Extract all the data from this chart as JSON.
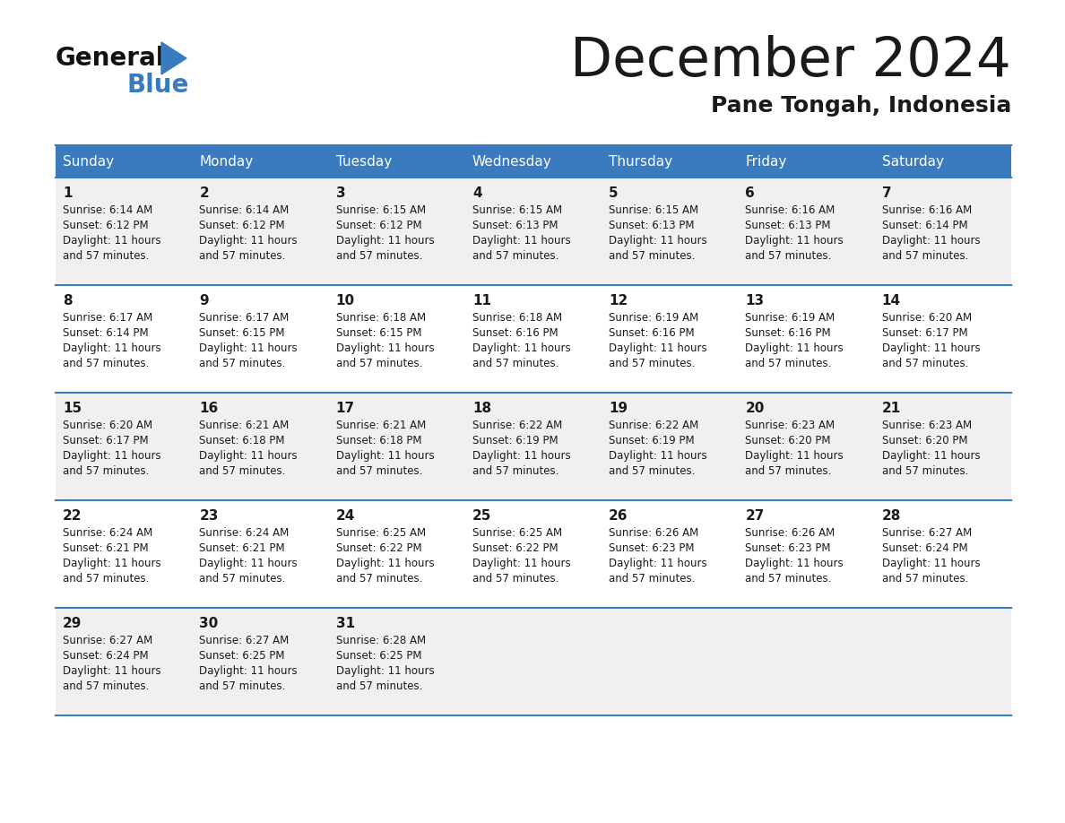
{
  "title": "December 2024",
  "subtitle": "Pane Tongah, Indonesia",
  "header_color": "#3a7bbf",
  "header_text_color": "#ffffff",
  "days_of_week": [
    "Sunday",
    "Monday",
    "Tuesday",
    "Wednesday",
    "Thursday",
    "Friday",
    "Saturday"
  ],
  "bg_color": "#ffffff",
  "cell_bg_even": "#f0f0f0",
  "cell_bg_odd": "#ffffff",
  "border_color": "#3a7bbf",
  "text_color": "#1a1a1a",
  "logo_general_color": "#111111",
  "logo_blue_color": "#3a7bbf",
  "weeks": [
    [
      {
        "day": 1,
        "sunrise": "6:14 AM",
        "sunset": "6:12 PM",
        "daylight": "11 hours and 57 minutes."
      },
      {
        "day": 2,
        "sunrise": "6:14 AM",
        "sunset": "6:12 PM",
        "daylight": "11 hours and 57 minutes."
      },
      {
        "day": 3,
        "sunrise": "6:15 AM",
        "sunset": "6:12 PM",
        "daylight": "11 hours and 57 minutes."
      },
      {
        "day": 4,
        "sunrise": "6:15 AM",
        "sunset": "6:13 PM",
        "daylight": "11 hours and 57 minutes."
      },
      {
        "day": 5,
        "sunrise": "6:15 AM",
        "sunset": "6:13 PM",
        "daylight": "11 hours and 57 minutes."
      },
      {
        "day": 6,
        "sunrise": "6:16 AM",
        "sunset": "6:13 PM",
        "daylight": "11 hours and 57 minutes."
      },
      {
        "day": 7,
        "sunrise": "6:16 AM",
        "sunset": "6:14 PM",
        "daylight": "11 hours and 57 minutes."
      }
    ],
    [
      {
        "day": 8,
        "sunrise": "6:17 AM",
        "sunset": "6:14 PM",
        "daylight": "11 hours and 57 minutes."
      },
      {
        "day": 9,
        "sunrise": "6:17 AM",
        "sunset": "6:15 PM",
        "daylight": "11 hours and 57 minutes."
      },
      {
        "day": 10,
        "sunrise": "6:18 AM",
        "sunset": "6:15 PM",
        "daylight": "11 hours and 57 minutes."
      },
      {
        "day": 11,
        "sunrise": "6:18 AM",
        "sunset": "6:16 PM",
        "daylight": "11 hours and 57 minutes."
      },
      {
        "day": 12,
        "sunrise": "6:19 AM",
        "sunset": "6:16 PM",
        "daylight": "11 hours and 57 minutes."
      },
      {
        "day": 13,
        "sunrise": "6:19 AM",
        "sunset": "6:16 PM",
        "daylight": "11 hours and 57 minutes."
      },
      {
        "day": 14,
        "sunrise": "6:20 AM",
        "sunset": "6:17 PM",
        "daylight": "11 hours and 57 minutes."
      }
    ],
    [
      {
        "day": 15,
        "sunrise": "6:20 AM",
        "sunset": "6:17 PM",
        "daylight": "11 hours and 57 minutes."
      },
      {
        "day": 16,
        "sunrise": "6:21 AM",
        "sunset": "6:18 PM",
        "daylight": "11 hours and 57 minutes."
      },
      {
        "day": 17,
        "sunrise": "6:21 AM",
        "sunset": "6:18 PM",
        "daylight": "11 hours and 57 minutes."
      },
      {
        "day": 18,
        "sunrise": "6:22 AM",
        "sunset": "6:19 PM",
        "daylight": "11 hours and 57 minutes."
      },
      {
        "day": 19,
        "sunrise": "6:22 AM",
        "sunset": "6:19 PM",
        "daylight": "11 hours and 57 minutes."
      },
      {
        "day": 20,
        "sunrise": "6:23 AM",
        "sunset": "6:20 PM",
        "daylight": "11 hours and 57 minutes."
      },
      {
        "day": 21,
        "sunrise": "6:23 AM",
        "sunset": "6:20 PM",
        "daylight": "11 hours and 57 minutes."
      }
    ],
    [
      {
        "day": 22,
        "sunrise": "6:24 AM",
        "sunset": "6:21 PM",
        "daylight": "11 hours and 57 minutes."
      },
      {
        "day": 23,
        "sunrise": "6:24 AM",
        "sunset": "6:21 PM",
        "daylight": "11 hours and 57 minutes."
      },
      {
        "day": 24,
        "sunrise": "6:25 AM",
        "sunset": "6:22 PM",
        "daylight": "11 hours and 57 minutes."
      },
      {
        "day": 25,
        "sunrise": "6:25 AM",
        "sunset": "6:22 PM",
        "daylight": "11 hours and 57 minutes."
      },
      {
        "day": 26,
        "sunrise": "6:26 AM",
        "sunset": "6:23 PM",
        "daylight": "11 hours and 57 minutes."
      },
      {
        "day": 27,
        "sunrise": "6:26 AM",
        "sunset": "6:23 PM",
        "daylight": "11 hours and 57 minutes."
      },
      {
        "day": 28,
        "sunrise": "6:27 AM",
        "sunset": "6:24 PM",
        "daylight": "11 hours and 57 minutes."
      }
    ],
    [
      {
        "day": 29,
        "sunrise": "6:27 AM",
        "sunset": "6:24 PM",
        "daylight": "11 hours and 57 minutes."
      },
      {
        "day": 30,
        "sunrise": "6:27 AM",
        "sunset": "6:25 PM",
        "daylight": "11 hours and 57 minutes."
      },
      {
        "day": 31,
        "sunrise": "6:28 AM",
        "sunset": "6:25 PM",
        "daylight": "11 hours and 57 minutes."
      },
      null,
      null,
      null,
      null
    ]
  ]
}
